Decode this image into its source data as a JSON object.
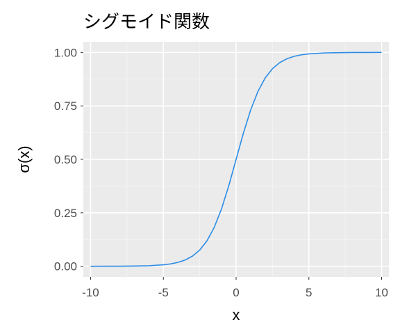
{
  "chart_data": {
    "type": "line",
    "title": "シグモイド関数",
    "xlabel": "x",
    "ylabel": "σ(x)",
    "xlim": [
      -10.5,
      10.5
    ],
    "ylim": [
      -0.05,
      1.05
    ],
    "x_ticks": [
      -10,
      -5,
      0,
      5,
      10
    ],
    "x_tick_labels": [
      "-10",
      "-5",
      "0",
      "5",
      "10"
    ],
    "y_ticks": [
      0,
      0.25,
      0.5,
      0.75,
      1
    ],
    "y_tick_labels": [
      "0.00",
      "0.25",
      "0.50",
      "0.75",
      "1.00"
    ],
    "grid": true,
    "panel_background": "#ebebeb",
    "series": [
      {
        "color": "#2b8ce6",
        "x": [
          -10,
          -9,
          -8,
          -7,
          -6,
          -5,
          -4.5,
          -4,
          -3.5,
          -3,
          -2.5,
          -2,
          -1.5,
          -1,
          -0.5,
          0,
          0.5,
          1,
          1.5,
          2,
          2.5,
          3,
          3.5,
          4,
          4.5,
          5,
          6,
          7,
          8,
          9,
          10
        ],
        "y": [
          0.0,
          0.0001,
          0.0003,
          0.0009,
          0.0025,
          0.0067,
          0.011,
          0.018,
          0.0293,
          0.0474,
          0.0759,
          0.1192,
          0.1824,
          0.2689,
          0.3775,
          0.5,
          0.6225,
          0.7311,
          0.8176,
          0.8808,
          0.9241,
          0.9526,
          0.9707,
          0.982,
          0.989,
          0.9933,
          0.9975,
          0.9991,
          0.9997,
          0.9999,
          1.0
        ]
      }
    ]
  }
}
